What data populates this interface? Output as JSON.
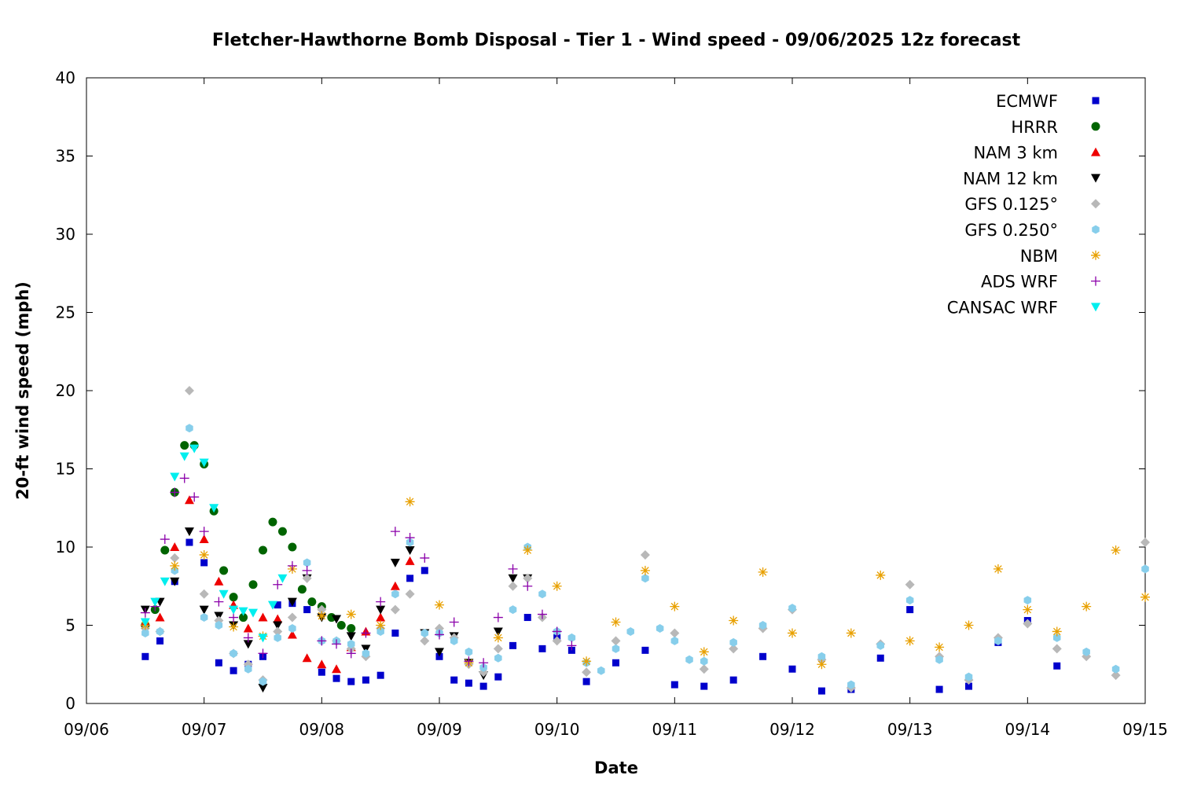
{
  "chart_data": {
    "type": "scatter",
    "title": "Fletcher-Hawthorne Bomb Disposal - Tier 1 - Wind speed - 09/06/2025 12z forecast",
    "xlabel": "Date",
    "ylabel": "20-ft wind speed (mph)",
    "xlim": [
      "2025-09-06T00:00",
      "2025-09-15T00:00"
    ],
    "ylim": [
      0,
      40
    ],
    "x_ticks": [
      "09/06",
      "09/07",
      "09/08",
      "09/09",
      "09/10",
      "09/11",
      "09/12",
      "09/13",
      "09/14",
      "09/15"
    ],
    "y_ticks": [
      0,
      5,
      10,
      15,
      20,
      25,
      30,
      35,
      40
    ],
    "grid": false,
    "legend_position": "top-right",
    "series": [
      {
        "name": "ECMWF",
        "marker": "square",
        "color": "#0000cc",
        "x": [
          "2025-09-06T12:00",
          "2025-09-06T15:00",
          "2025-09-06T18:00",
          "2025-09-06T21:00",
          "2025-09-07T00:00",
          "2025-09-07T03:00",
          "2025-09-07T06:00",
          "2025-09-07T09:00",
          "2025-09-07T12:00",
          "2025-09-07T15:00",
          "2025-09-07T18:00",
          "2025-09-07T21:00",
          "2025-09-08T00:00",
          "2025-09-08T03:00",
          "2025-09-08T06:00",
          "2025-09-08T09:00",
          "2025-09-08T12:00",
          "2025-09-08T15:00",
          "2025-09-08T18:00",
          "2025-09-08T21:00",
          "2025-09-09T00:00",
          "2025-09-09T03:00",
          "2025-09-09T06:00",
          "2025-09-09T09:00",
          "2025-09-09T12:00",
          "2025-09-09T15:00",
          "2025-09-09T18:00",
          "2025-09-09T21:00",
          "2025-09-10T00:00",
          "2025-09-10T03:00",
          "2025-09-10T06:00",
          "2025-09-10T12:00",
          "2025-09-10T18:00",
          "2025-09-11T00:00",
          "2025-09-11T06:00",
          "2025-09-11T12:00",
          "2025-09-11T18:00",
          "2025-09-12T00:00",
          "2025-09-12T06:00",
          "2025-09-12T12:00",
          "2025-09-12T18:00",
          "2025-09-13T00:00",
          "2025-09-13T06:00",
          "2025-09-13T12:00",
          "2025-09-13T18:00",
          "2025-09-14T00:00",
          "2025-09-14T06:00"
        ],
        "values": [
          3.0,
          4.0,
          7.8,
          10.3,
          9.0,
          2.6,
          2.1,
          2.5,
          3.0,
          6.3,
          6.4,
          6.0,
          2.0,
          1.6,
          1.4,
          1.5,
          1.8,
          4.5,
          8.0,
          8.5,
          3.0,
          1.5,
          1.3,
          1.1,
          1.7,
          3.7,
          5.5,
          3.5,
          4.2,
          3.4,
          1.4,
          2.6,
          3.4,
          1.2,
          1.1,
          1.5,
          3.0,
          2.2,
          0.8,
          0.9,
          2.9,
          6.0,
          0.9,
          1.1,
          3.9,
          5.3,
          2.4
        ]
      },
      {
        "name": "HRRR",
        "marker": "circle",
        "color": "#006400",
        "x": [
          "2025-09-06T12:00",
          "2025-09-06T14:00",
          "2025-09-06T16:00",
          "2025-09-06T18:00",
          "2025-09-06T20:00",
          "2025-09-06T22:00",
          "2025-09-07T00:00",
          "2025-09-07T02:00",
          "2025-09-07T04:00",
          "2025-09-07T06:00",
          "2025-09-07T08:00",
          "2025-09-07T10:00",
          "2025-09-07T12:00",
          "2025-09-07T14:00",
          "2025-09-07T16:00",
          "2025-09-07T18:00",
          "2025-09-07T20:00",
          "2025-09-07T22:00",
          "2025-09-08T00:00",
          "2025-09-08T02:00",
          "2025-09-08T04:00",
          "2025-09-08T06:00"
        ],
        "values": [
          5.0,
          6.0,
          9.8,
          13.5,
          16.5,
          16.5,
          15.3,
          12.3,
          8.5,
          6.8,
          5.5,
          7.6,
          9.8,
          11.6,
          11.0,
          10.0,
          7.3,
          6.5,
          6.2,
          5.5,
          5.0,
          4.8
        ]
      },
      {
        "name": "NAM 3 km",
        "marker": "triangle-up",
        "color": "#ee0000",
        "x": [
          "2025-09-06T12:00",
          "2025-09-06T15:00",
          "2025-09-06T18:00",
          "2025-09-06T21:00",
          "2025-09-07T00:00",
          "2025-09-07T03:00",
          "2025-09-07T06:00",
          "2025-09-07T09:00",
          "2025-09-07T12:00",
          "2025-09-07T15:00",
          "2025-09-07T18:00",
          "2025-09-07T21:00",
          "2025-09-08T00:00",
          "2025-09-08T03:00",
          "2025-09-08T06:00",
          "2025-09-08T09:00",
          "2025-09-08T12:00",
          "2025-09-08T15:00",
          "2025-09-08T18:00"
        ],
        "values": [
          5.2,
          5.5,
          10.0,
          13.0,
          10.5,
          7.8,
          6.3,
          4.8,
          5.5,
          5.4,
          4.4,
          2.9,
          2.5,
          2.2,
          3.6,
          4.6,
          5.5,
          7.5,
          9.1
        ]
      },
      {
        "name": "NAM 12 km",
        "marker": "triangle-down",
        "color": "#000000",
        "x": [
          "2025-09-06T12:00",
          "2025-09-06T15:00",
          "2025-09-06T18:00",
          "2025-09-06T21:00",
          "2025-09-07T00:00",
          "2025-09-07T03:00",
          "2025-09-07T06:00",
          "2025-09-07T09:00",
          "2025-09-07T12:00",
          "2025-09-07T15:00",
          "2025-09-07T18:00",
          "2025-09-07T21:00",
          "2025-09-08T00:00",
          "2025-09-08T03:00",
          "2025-09-08T06:00",
          "2025-09-08T09:00",
          "2025-09-08T12:00",
          "2025-09-08T15:00",
          "2025-09-08T18:00",
          "2025-09-08T21:00",
          "2025-09-09T00:00",
          "2025-09-09T03:00",
          "2025-09-09T06:00",
          "2025-09-09T09:00",
          "2025-09-09T12:00",
          "2025-09-09T15:00",
          "2025-09-09T18:00"
        ],
        "values": [
          6.0,
          6.5,
          7.8,
          11.0,
          6.0,
          5.6,
          5.0,
          3.8,
          1.0,
          5.0,
          6.5,
          8.0,
          5.5,
          5.4,
          4.3,
          3.5,
          6.0,
          9.0,
          9.8,
          4.5,
          3.3,
          4.3,
          2.6,
          1.8,
          4.6,
          8.0,
          8.0
        ]
      },
      {
        "name": "GFS 0.125°",
        "marker": "diamond",
        "color": "#b8b8b8",
        "x": [
          "2025-09-06T12:00",
          "2025-09-06T15:00",
          "2025-09-06T18:00",
          "2025-09-06T21:00",
          "2025-09-07T00:00",
          "2025-09-07T03:00",
          "2025-09-07T06:00",
          "2025-09-07T09:00",
          "2025-09-07T12:00",
          "2025-09-07T15:00",
          "2025-09-07T18:00",
          "2025-09-07T21:00",
          "2025-09-08T00:00",
          "2025-09-08T03:00",
          "2025-09-08T06:00",
          "2025-09-08T09:00",
          "2025-09-08T12:00",
          "2025-09-08T15:00",
          "2025-09-08T18:00",
          "2025-09-08T21:00",
          "2025-09-09T00:00",
          "2025-09-09T03:00",
          "2025-09-09T06:00",
          "2025-09-09T09:00",
          "2025-09-09T12:00",
          "2025-09-09T15:00",
          "2025-09-09T18:00",
          "2025-09-09T21:00",
          "2025-09-10T00:00",
          "2025-09-10T06:00",
          "2025-09-10T12:00",
          "2025-09-10T18:00",
          "2025-09-11T00:00",
          "2025-09-11T06:00",
          "2025-09-11T12:00",
          "2025-09-11T18:00",
          "2025-09-12T00:00",
          "2025-09-12T06:00",
          "2025-09-12T12:00",
          "2025-09-12T18:00",
          "2025-09-13T00:00",
          "2025-09-13T06:00",
          "2025-09-13T12:00",
          "2025-09-13T18:00",
          "2025-09-14T00:00",
          "2025-09-14T06:00",
          "2025-09-14T12:00",
          "2025-09-14T18:00",
          "2025-09-15T00:00"
        ],
        "values": [
          4.8,
          4.6,
          9.3,
          20.0,
          7.0,
          5.3,
          3.2,
          2.5,
          1.5,
          4.6,
          5.5,
          8.0,
          6.0,
          4.0,
          3.5,
          3.0,
          4.8,
          6.0,
          7.0,
          4.0,
          4.8,
          4.2,
          2.5,
          2.0,
          3.5,
          7.5,
          8.0,
          5.5,
          4.0,
          2.0,
          4.0,
          9.5,
          4.5,
          2.2,
          3.5,
          4.8,
          6.0,
          2.8,
          1.0,
          3.8,
          7.6,
          3.0,
          1.5,
          4.2,
          5.1,
          3.5,
          3.0,
          1.8,
          10.3
        ]
      },
      {
        "name": "GFS 0.250°",
        "marker": "hexagon",
        "color": "#87ceeb",
        "x": [
          "2025-09-06T12:00",
          "2025-09-06T15:00",
          "2025-09-06T18:00",
          "2025-09-06T21:00",
          "2025-09-07T00:00",
          "2025-09-07T03:00",
          "2025-09-07T06:00",
          "2025-09-07T09:00",
          "2025-09-07T12:00",
          "2025-09-07T15:00",
          "2025-09-07T18:00",
          "2025-09-07T21:00",
          "2025-09-08T00:00",
          "2025-09-08T03:00",
          "2025-09-08T06:00",
          "2025-09-08T09:00",
          "2025-09-08T12:00",
          "2025-09-08T15:00",
          "2025-09-08T18:00",
          "2025-09-08T21:00",
          "2025-09-09T00:00",
          "2025-09-09T03:00",
          "2025-09-09T06:00",
          "2025-09-09T09:00",
          "2025-09-09T12:00",
          "2025-09-09T15:00",
          "2025-09-09T18:00",
          "2025-09-09T21:00",
          "2025-09-10T00:00",
          "2025-09-10T03:00",
          "2025-09-10T06:00",
          "2025-09-10T09:00",
          "2025-09-10T12:00",
          "2025-09-10T15:00",
          "2025-09-10T18:00",
          "2025-09-10T21:00",
          "2025-09-11T00:00",
          "2025-09-11T03:00",
          "2025-09-11T06:00",
          "2025-09-11T12:00",
          "2025-09-11T18:00",
          "2025-09-12T00:00",
          "2025-09-12T06:00",
          "2025-09-12T12:00",
          "2025-09-12T18:00",
          "2025-09-13T00:00",
          "2025-09-13T06:00",
          "2025-09-13T12:00",
          "2025-09-13T18:00",
          "2025-09-14T00:00",
          "2025-09-14T06:00",
          "2025-09-14T12:00",
          "2025-09-14T18:00",
          "2025-09-15T00:00"
        ],
        "values": [
          4.5,
          4.6,
          8.5,
          17.6,
          5.5,
          5.0,
          3.2,
          2.2,
          1.4,
          4.2,
          4.8,
          9.0,
          4.0,
          4.0,
          3.8,
          3.2,
          4.6,
          7.0,
          10.3,
          4.5,
          4.5,
          4.0,
          3.3,
          2.3,
          2.9,
          6.0,
          10.0,
          7.0,
          4.6,
          4.2,
          2.6,
          2.1,
          3.5,
          4.6,
          8.0,
          4.8,
          4.0,
          2.8,
          2.7,
          3.9,
          5.0,
          6.1,
          3.0,
          1.2,
          3.7,
          6.6,
          2.8,
          1.7,
          4.0,
          6.6,
          4.2,
          3.3,
          2.2,
          8.6
        ]
      },
      {
        "name": "NBM",
        "marker": "asterisk",
        "color": "#e8a000",
        "x": [
          "2025-09-06T12:00",
          "2025-09-06T18:00",
          "2025-09-07T00:00",
          "2025-09-07T06:00",
          "2025-09-07T12:00",
          "2025-09-07T18:00",
          "2025-09-08T00:00",
          "2025-09-08T06:00",
          "2025-09-08T12:00",
          "2025-09-08T18:00",
          "2025-09-09T00:00",
          "2025-09-09T06:00",
          "2025-09-09T12:00",
          "2025-09-09T18:00",
          "2025-09-10T00:00",
          "2025-09-10T06:00",
          "2025-09-10T12:00",
          "2025-09-10T18:00",
          "2025-09-11T00:00",
          "2025-09-11T06:00",
          "2025-09-11T12:00",
          "2025-09-11T18:00",
          "2025-09-12T00:00",
          "2025-09-12T06:00",
          "2025-09-12T12:00",
          "2025-09-12T18:00",
          "2025-09-13T00:00",
          "2025-09-13T06:00",
          "2025-09-13T12:00",
          "2025-09-13T18:00",
          "2025-09-14T00:00",
          "2025-09-14T06:00",
          "2025-09-14T12:00",
          "2025-09-14T18:00",
          "2025-09-15T00:00"
        ],
        "values": [
          5.0,
          8.8,
          9.5,
          4.9,
          4.3,
          8.6,
          5.6,
          5.7,
          5.0,
          12.9,
          6.3,
          2.6,
          4.2,
          9.8,
          7.5,
          2.7,
          5.2,
          8.5,
          6.2,
          3.3,
          5.3,
          8.4,
          4.5,
          2.5,
          4.5,
          8.2,
          4.0,
          3.6,
          5.0,
          8.6,
          6.0,
          4.6,
          6.2,
          9.8,
          6.8
        ]
      },
      {
        "name": "ADS WRF",
        "marker": "plus",
        "color": "#8b00aa",
        "x": [
          "2025-09-06T12:00",
          "2025-09-06T14:00",
          "2025-09-06T16:00",
          "2025-09-06T18:00",
          "2025-09-06T20:00",
          "2025-09-06T22:00",
          "2025-09-07T00:00",
          "2025-09-07T03:00",
          "2025-09-07T06:00",
          "2025-09-07T09:00",
          "2025-09-07T12:00",
          "2025-09-07T15:00",
          "2025-09-07T18:00",
          "2025-09-07T21:00",
          "2025-09-08T00:00",
          "2025-09-08T03:00",
          "2025-09-08T06:00",
          "2025-09-08T09:00",
          "2025-09-08T12:00",
          "2025-09-08T15:00",
          "2025-09-08T18:00",
          "2025-09-08T21:00",
          "2025-09-09T00:00",
          "2025-09-09T03:00",
          "2025-09-09T06:00",
          "2025-09-09T09:00",
          "2025-09-09T12:00",
          "2025-09-09T15:00",
          "2025-09-09T18:00",
          "2025-09-09T21:00",
          "2025-09-10T00:00",
          "2025-09-10T03:00"
        ],
        "values": [
          5.8,
          6.2,
          10.5,
          13.5,
          14.4,
          13.2,
          11.0,
          6.5,
          5.5,
          4.2,
          3.2,
          7.6,
          8.8,
          8.5,
          4.0,
          3.8,
          3.2,
          4.5,
          6.5,
          11.0,
          10.6,
          9.3,
          4.4,
          5.2,
          2.7,
          2.6,
          5.5,
          8.6,
          7.5,
          5.7,
          4.6,
          3.7
        ]
      },
      {
        "name": "CANSAC WRF",
        "marker": "triangle-down",
        "color": "#00eeee",
        "x": [
          "2025-09-06T12:00",
          "2025-09-06T14:00",
          "2025-09-06T16:00",
          "2025-09-06T18:00",
          "2025-09-06T20:00",
          "2025-09-06T22:00",
          "2025-09-07T00:00",
          "2025-09-07T02:00",
          "2025-09-07T04:00",
          "2025-09-07T06:00",
          "2025-09-07T08:00",
          "2025-09-07T10:00",
          "2025-09-07T12:00",
          "2025-09-07T14:00",
          "2025-09-07T16:00"
        ],
        "values": [
          5.2,
          6.5,
          7.8,
          14.5,
          15.8,
          16.3,
          15.4,
          12.5,
          7.0,
          6.0,
          5.9,
          5.8,
          4.2,
          6.3,
          8.0
        ]
      }
    ]
  }
}
